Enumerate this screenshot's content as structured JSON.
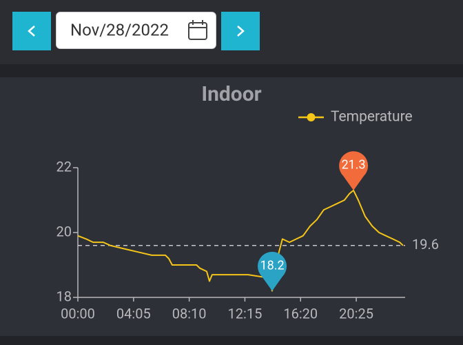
{
  "date_picker": {
    "date": "Nov/28/2022"
  },
  "chart_data": {
    "type": "line",
    "title": "Indoor",
    "x": [
      0,
      37,
      67,
      112,
      143,
      203,
      264,
      325,
      385,
      400,
      415,
      476,
      522,
      537,
      567,
      579,
      591,
      658,
      749,
      840,
      855,
      870,
      885,
      900,
      931,
      961,
      991,
      1022,
      1052,
      1082,
      1113,
      1143,
      1173,
      1195,
      1213,
      1234,
      1264,
      1295,
      1325,
      1355,
      1386,
      1416,
      1431
    ],
    "series": [
      {
        "name": "Temperature",
        "color": "#f5c518",
        "values": [
          19.9,
          19.8,
          19.7,
          19.7,
          19.6,
          19.5,
          19.4,
          19.3,
          19.3,
          19.2,
          19.0,
          19.0,
          19.0,
          18.9,
          18.8,
          18.5,
          18.7,
          18.7,
          18.7,
          18.6,
          18.2,
          18.7,
          19.4,
          19.8,
          19.7,
          19.8,
          19.9,
          20.2,
          20.4,
          20.7,
          20.8,
          20.9,
          21.0,
          21.2,
          21.3,
          21.0,
          20.5,
          20.2,
          20.0,
          19.9,
          19.8,
          19.7,
          19.6
        ]
      }
    ],
    "xlim": [
      0,
      1440
    ],
    "xticks": [
      {
        "value": 0,
        "label": "00:00"
      },
      {
        "value": 245,
        "label": "04:05"
      },
      {
        "value": 490,
        "label": "08:10"
      },
      {
        "value": 735,
        "label": "12:15"
      },
      {
        "value": 980,
        "label": "16:20"
      },
      {
        "value": 1225,
        "label": "20:25"
      }
    ],
    "ylim": [
      18,
      22
    ],
    "yticks": [
      18,
      20,
      22
    ],
    "mark_line": {
      "value": 19.6
    },
    "mark_points": [
      {
        "x": 1213,
        "value": 21.3,
        "color": "#f26b3a"
      },
      {
        "x": 855,
        "value": 18.2,
        "color": "#2aa3c4"
      }
    ],
    "legend": "top-right"
  }
}
